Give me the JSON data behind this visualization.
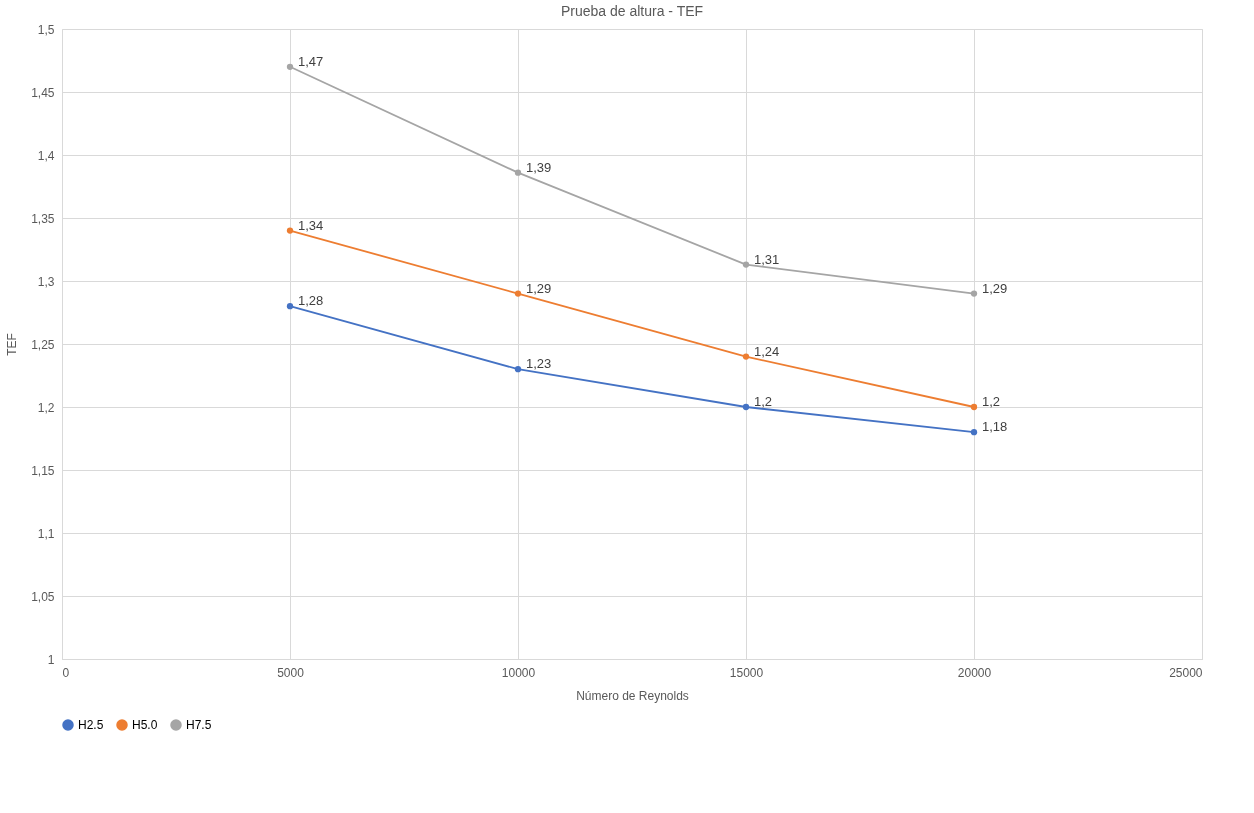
{
  "chart_data": {
    "type": "line",
    "title": "Prueba de altura - TEF",
    "xlabel": "Número de Reynolds",
    "ylabel": "TEF",
    "x": [
      5000,
      10000,
      15000,
      20000
    ],
    "series": [
      {
        "name": "H2.5",
        "color": "#4472c4",
        "values": [
          1.28,
          1.23,
          1.2,
          1.18
        ],
        "value_labels": [
          "1,28",
          "1,23",
          "1,2",
          "1,18"
        ]
      },
      {
        "name": "H5.0",
        "color": "#ed7d31",
        "values": [
          1.34,
          1.29,
          1.24,
          1.2
        ],
        "value_labels": [
          "1,34",
          "1,29",
          "1,24",
          "1,2"
        ]
      },
      {
        "name": "H7.5",
        "color": "#a5a5a5",
        "values": [
          1.47,
          1.386,
          1.313,
          1.29
        ],
        "value_labels": [
          "1,47",
          "1,39",
          "1,31",
          "1,29"
        ]
      }
    ],
    "xlim": [
      0,
      25000
    ],
    "xticks": [
      0,
      5000,
      10000,
      15000,
      20000,
      25000
    ],
    "ylim": [
      1,
      1.5
    ],
    "yticks": [
      {
        "value": 1,
        "label": "1"
      },
      {
        "value": 1.05,
        "label": "1,05"
      },
      {
        "value": 1.1,
        "label": "1,1"
      },
      {
        "value": 1.15,
        "label": "1,15"
      },
      {
        "value": 1.2,
        "label": "1,2"
      },
      {
        "value": 1.25,
        "label": "1,25"
      },
      {
        "value": 1.3,
        "label": "1,3"
      },
      {
        "value": 1.35,
        "label": "1,35"
      },
      {
        "value": 1.4,
        "label": "1,4"
      },
      {
        "value": 1.45,
        "label": "1,45"
      },
      {
        "value": 1.5,
        "label": "1,5"
      }
    ],
    "grid": true,
    "legend": "bottom",
    "marker": "circle",
    "line_style": "solid"
  }
}
